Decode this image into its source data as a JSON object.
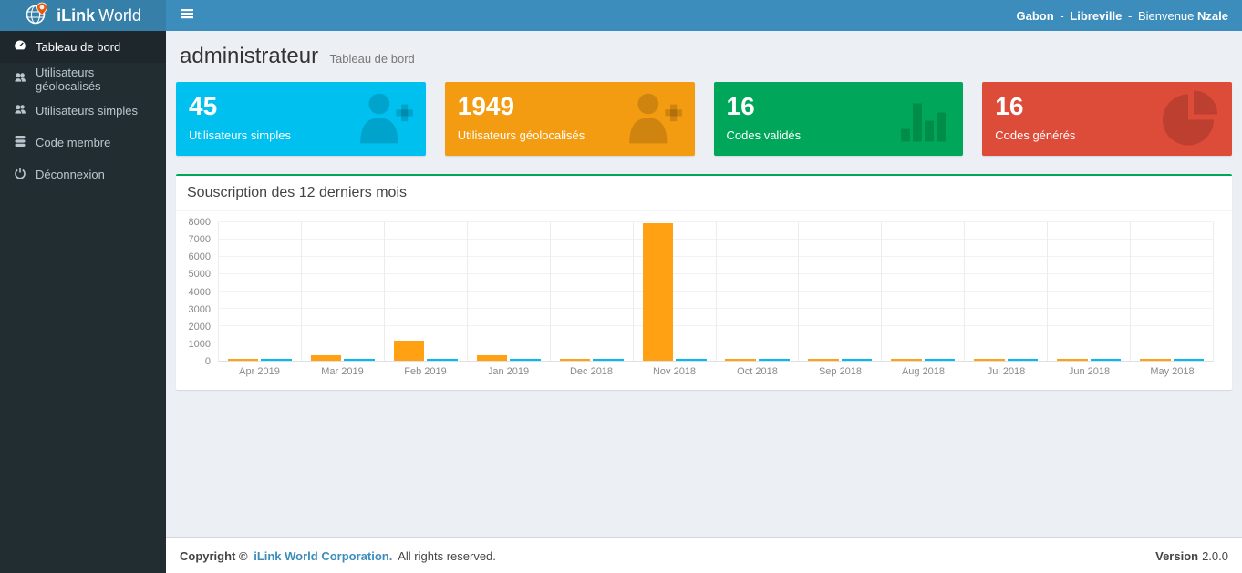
{
  "navbar": {
    "brand_bold": "iLink",
    "brand_light": "World",
    "country": "Gabon",
    "separator": "-",
    "city": "Libreville",
    "greeting": "Bienvenue",
    "user_name": "Nzale"
  },
  "sidebar": {
    "items": [
      {
        "label": "Tableau de bord",
        "icon": "dashboard-icon",
        "active": true
      },
      {
        "label": "Utilisateurs géolocalisés",
        "icon": "users-icon",
        "active": false
      },
      {
        "label": "Utilisateurs simples",
        "icon": "users-icon",
        "active": false
      },
      {
        "label": "Code membre",
        "icon": "database-icon",
        "active": false
      },
      {
        "label": "Déconnexion",
        "icon": "power-icon",
        "active": false
      }
    ]
  },
  "header": {
    "title": "administrateur",
    "subtitle": "Tableau de bord"
  },
  "cards": [
    {
      "value": "45",
      "label": "Utilisateurs simples",
      "color": "#00c0ef",
      "icon": "user-plus-icon"
    },
    {
      "value": "1949",
      "label": "Utilisateurs géolocalisés",
      "color": "#f39c12",
      "icon": "user-plus-icon"
    },
    {
      "value": "16",
      "label": "Codes validés",
      "color": "#00a65a",
      "icon": "bar-chart-icon"
    },
    {
      "value": "16",
      "label": "Codes générés",
      "color": "#dd4b39",
      "icon": "pie-chart-icon"
    }
  ],
  "panel": {
    "title": "Souscription des 12 derniers mois",
    "accent_color": "#00a65a"
  },
  "chart_data": {
    "type": "bar",
    "title": "Souscription des 12 derniers mois",
    "categories": [
      "Apr 2019",
      "Mar 2019",
      "Feb 2019",
      "Jan 2019",
      "Dec 2018",
      "Nov 2018",
      "Oct 2018",
      "Sep 2018",
      "Aug 2018",
      "Jul 2018",
      "Jun 2018",
      "May 2018"
    ],
    "series": [
      {
        "name": "orange-series",
        "color": "#ffa113",
        "values": [
          80,
          320,
          1150,
          330,
          60,
          7900,
          60,
          90,
          60,
          80,
          90,
          90
        ]
      },
      {
        "name": "blue-series",
        "color": "#00bcf2",
        "values": [
          40,
          40,
          40,
          40,
          40,
          40,
          40,
          40,
          40,
          40,
          40,
          40
        ]
      }
    ],
    "ylim": [
      0,
      8000
    ],
    "yticks": [
      0,
      1000,
      2000,
      3000,
      4000,
      5000,
      6000,
      7000,
      8000
    ],
    "grid": true,
    "legend": "none",
    "xlabel": "",
    "ylabel": ""
  },
  "footer": {
    "copyright_prefix": "Copyright ©",
    "company": "iLink World Corporation.",
    "rights": "All rights reserved.",
    "version_label": "Version",
    "version_value": "2.0.0"
  }
}
